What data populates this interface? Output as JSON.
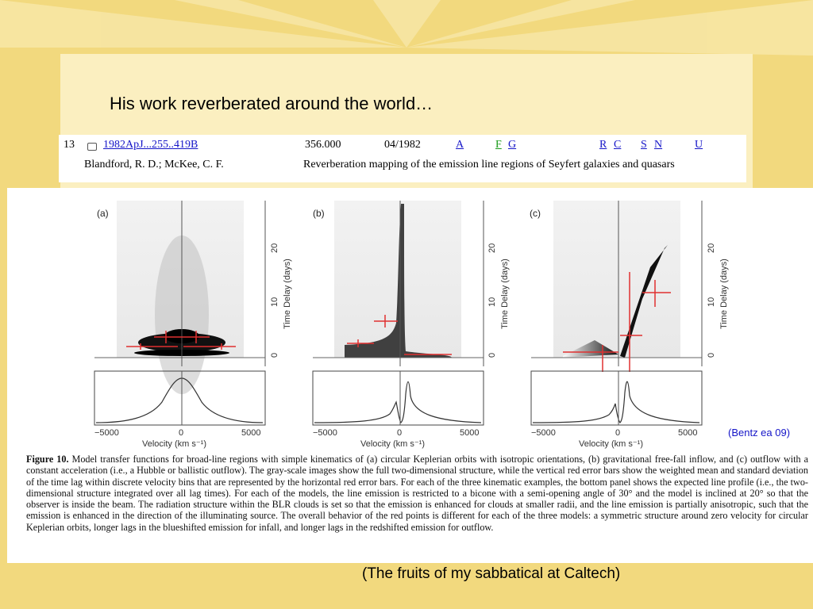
{
  "slide": {
    "title": "His work reverberated around the world…",
    "footer": "(The fruits of my sabbatical at Caltech)",
    "background_color": "#f2d97e"
  },
  "ads_record": {
    "index": "13",
    "bibcode": "1982ApJ...255..419B",
    "score": "356.000",
    "date": "04/1982",
    "links": [
      "A",
      "F",
      "G",
      "R",
      "C",
      "S",
      "N",
      "U"
    ],
    "authors": "Blandford, R. D.; McKee, C. F.",
    "paper_title": "Reverberation mapping of the emission line regions of Seyfert galaxies and quasars"
  },
  "figure": {
    "credit": "(Bentz ea 09)",
    "panels": [
      {
        "label": "(a)",
        "kinematics": "circular Keplerian orbits"
      },
      {
        "label": "(b)",
        "kinematics": "gravitational free-fall inflow"
      },
      {
        "label": "(c)",
        "kinematics": "outflow with constant acceleration"
      }
    ],
    "x_axis_label": "Velocity (km s⁻¹)",
    "x_ticks": [
      "−5000",
      "0",
      "5000"
    ],
    "y_axis_label": "Time Delay (days)",
    "y_ticks": [
      "0",
      "10",
      "20"
    ],
    "error_bar_color": "#e03030",
    "caption_label": "Figure 10.",
    "caption_text": " Model transfer functions for broad-line regions with simple kinematics of (a) circular Keplerian orbits with isotropic orientations, (b) gravitational free-fall inflow, and (c) outflow with a constant acceleration (i.e., a Hubble or ballistic outflow). The gray-scale images show the full two-dimensional structure, while the vertical red error bars show the weighted mean and standard deviation of the time lag within discrete velocity bins that are represented by the horizontal red error bars. For each of the three kinematic examples, the bottom panel shows the expected line profile (i.e., the two-dimensional structure integrated over all lag times). For each of the models, the line emission is restricted to a bicone with a semi-opening angle of 30° and the model is inclined at 20° so that the observer is inside the beam. The radiation structure within the BLR clouds is set so that the emission is enhanced for clouds at smaller radii, and the line emission is partially anisotropic, such that the emission is enhanced in the direction of the illuminating source. The overall behavior of the red points is different for each of the three models: a symmetric structure around zero velocity for circular Keplerian orbits, longer lags in the blueshifted emission for infall, and longer lags in the redshifted emission for outflow."
  }
}
